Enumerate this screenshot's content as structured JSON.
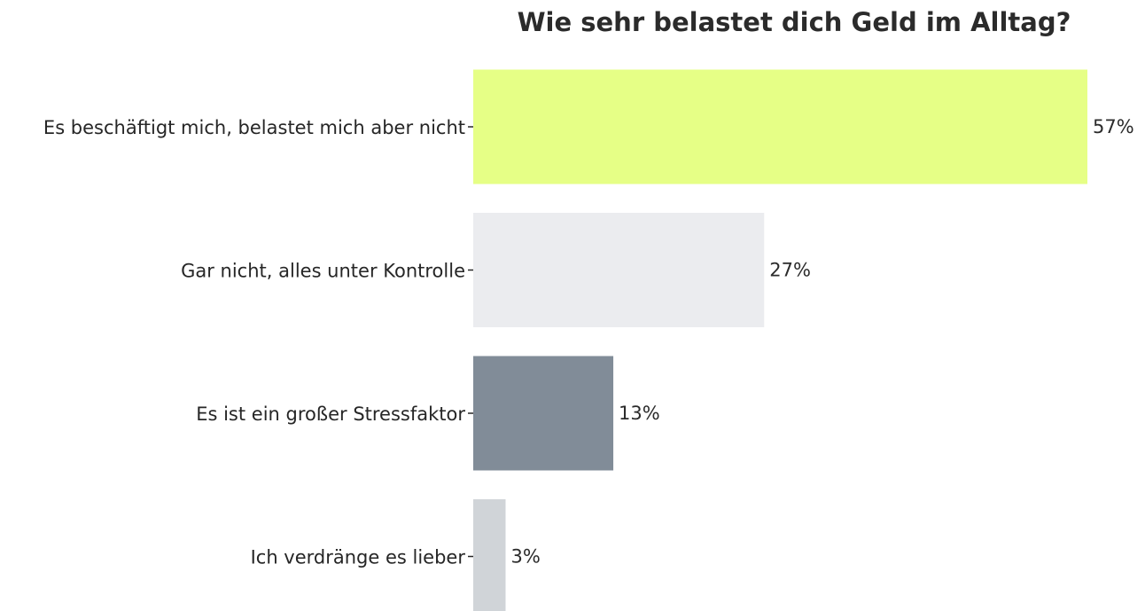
{
  "chart_data": {
    "type": "bar",
    "orientation": "horizontal",
    "title": "Wie sehr belastet dich Geld im Alltag?",
    "xlabel": "",
    "ylabel": "",
    "xlim": [
      0,
      57
    ],
    "grid": false,
    "legend": "none",
    "categories": [
      "Es beschäftigt mich, belastet mich aber nicht",
      "Gar nicht, alles unter Kontrolle",
      "Es ist ein großer Stressfaktor",
      "Ich verdränge es lieber"
    ],
    "values": [
      57,
      27,
      13,
      3
    ],
    "value_labels": [
      "57%",
      "27%",
      "13%",
      "3%"
    ],
    "colors": [
      "#e6ff86",
      "#ebecef",
      "#818c98",
      "#d0d4d8"
    ]
  }
}
